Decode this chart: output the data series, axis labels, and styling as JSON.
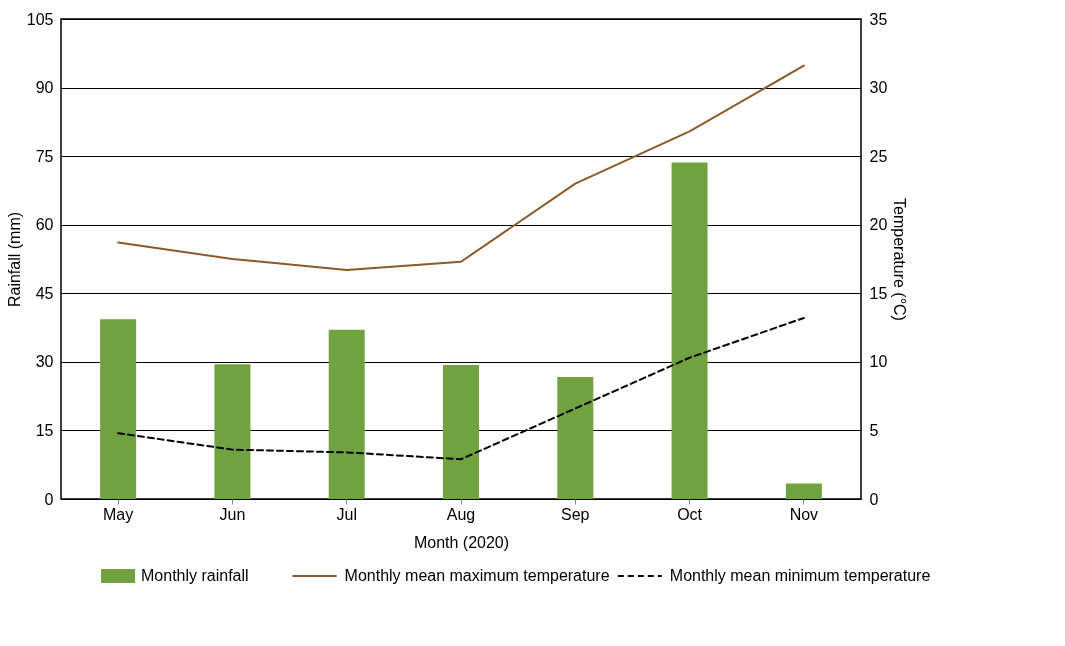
{
  "chart_data": {
    "type": "bar",
    "categories": [
      "May",
      "Jun",
      "Jul",
      "Aug",
      "Sep",
      "Oct",
      "Nov"
    ],
    "xlabel": "Month (2020)",
    "ylabel": "Rainfall (mm)",
    "y2label": "Temperature (°C)",
    "ylim": [
      0,
      105
    ],
    "yticks": [
      0,
      15,
      30,
      45,
      60,
      75,
      90,
      105
    ],
    "y2lim": [
      0,
      35
    ],
    "y2ticks": [
      0,
      5,
      10,
      15,
      20,
      25,
      30,
      35
    ],
    "grid": "y",
    "legend": "bottom",
    "series": [
      {
        "name": "Monthly rainfall",
        "color": "#70a340",
        "values": [
          39.3,
          29.5,
          37.0,
          29.3,
          26.7,
          73.6,
          3.4
        ]
      },
      {
        "name": "Monthly mean maximum temperature",
        "type": "line",
        "axis": "y2",
        "color": "#8b5a2b",
        "line_style": "solid",
        "values": [
          18.7,
          17.5,
          16.7,
          17.3,
          23.0,
          26.8,
          31.6
        ]
      },
      {
        "name": "Monthly mean minimum temperature",
        "type": "line",
        "axis": "y2",
        "color": "#000000",
        "line_style": "dashed",
        "values": [
          4.8,
          3.6,
          3.4,
          2.9,
          6.6,
          10.3,
          13.2
        ]
      }
    ]
  }
}
